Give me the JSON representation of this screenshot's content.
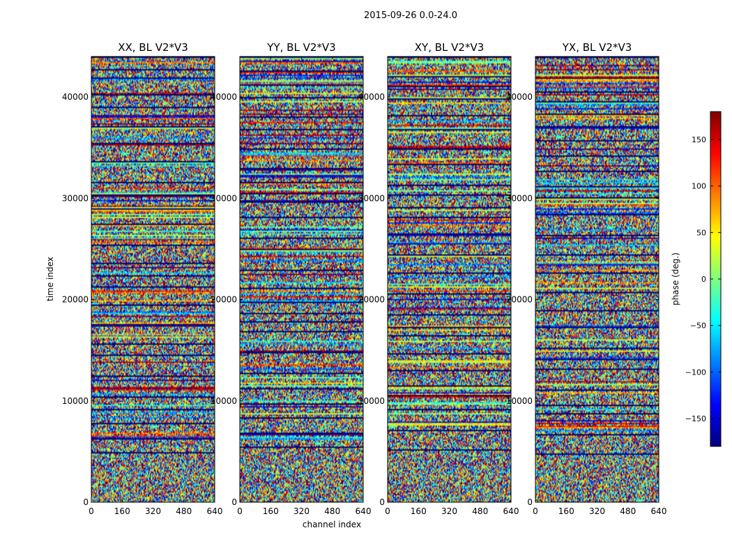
{
  "figure": {
    "suptitle": "2015-09-26 0.0-24.0",
    "xlabel": "channel index",
    "ylabel": "time index"
  },
  "colorbar": {
    "label": "phase (deg.)",
    "range": [
      -180,
      180
    ],
    "ticks": [
      -150,
      -100,
      -50,
      0,
      50,
      100,
      150
    ],
    "tick_labels": [
      "−150",
      "−100",
      "−50",
      "0",
      "50",
      "100",
      "150"
    ],
    "colormap": [
      "#00007f",
      "#0000ff",
      "#007fff",
      "#00ffff",
      "#7fff7f",
      "#ffff00",
      "#ff7f00",
      "#ff0000",
      "#7f0000"
    ]
  },
  "chart_data": [
    {
      "type": "heatmap",
      "title": "XX, BL V2*V3",
      "x_range": [
        0,
        640
      ],
      "y_range": [
        0,
        44000
      ],
      "x_ticks": [
        0,
        160,
        320,
        480,
        640
      ],
      "y_ticks": [
        0,
        10000,
        20000,
        30000,
        40000
      ],
      "z_label": "phase (deg.)",
      "z_range": [
        -180,
        180
      ],
      "description_note": "phase noise"
    },
    {
      "type": "heatmap",
      "title": "YY, BL V2*V3",
      "x_range": [
        0,
        640
      ],
      "y_range": [
        0,
        44000
      ],
      "x_ticks": [
        0,
        160,
        320,
        480,
        640
      ],
      "y_ticks": [
        0,
        10000,
        20000,
        30000,
        40000
      ],
      "z_label": "phase (deg.)",
      "z_range": [
        -180,
        180
      ]
    },
    {
      "type": "heatmap",
      "title": "XY, BL V2*V3",
      "x_range": [
        0,
        640
      ],
      "y_range": [
        0,
        44000
      ],
      "x_ticks": [
        0,
        160,
        320,
        480,
        640
      ],
      "y_ticks": [
        0,
        10000,
        20000,
        30000,
        40000
      ],
      "z_label": "phase (deg.)",
      "z_range": [
        -180,
        180
      ]
    },
    {
      "type": "heatmap",
      "title": "YX, BL V2*V3",
      "x_range": [
        0,
        640
      ],
      "y_range": [
        0,
        44000
      ],
      "x_ticks": [
        0,
        160,
        320,
        480,
        640
      ],
      "y_ticks": [
        0,
        10000,
        20000,
        30000,
        40000
      ],
      "z_label": "phase (deg.)",
      "z_range": [
        -180,
        180
      ]
    }
  ]
}
